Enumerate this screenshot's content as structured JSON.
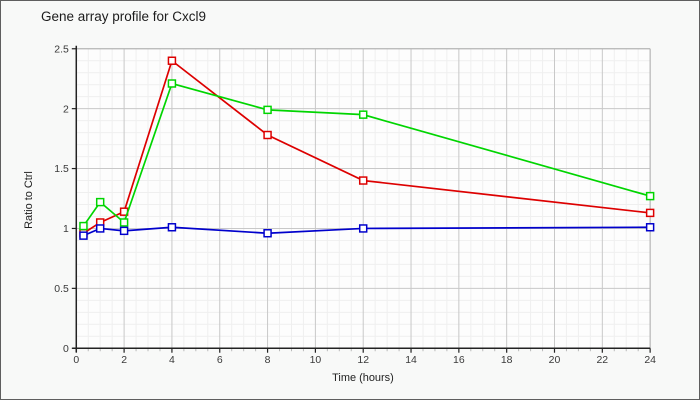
{
  "chart_data": {
    "type": "line",
    "title": "Gene array profile for Cxcl9",
    "xlabel": "Time (hours)",
    "ylabel": "Ratio to Ctrl",
    "xlim": [
      0,
      24
    ],
    "ylim": [
      0,
      2.5
    ],
    "x_ticks": [
      0,
      2,
      4,
      6,
      8,
      10,
      12,
      14,
      16,
      18,
      20,
      22,
      24
    ],
    "y_ticks": [
      0,
      0.5,
      1,
      1.5,
      2,
      2.5
    ],
    "x_minor_step": 0.5,
    "y_minor_step": 0.1,
    "grid": true,
    "legend": "none",
    "marker": "open-square",
    "x": [
      0.3,
      1,
      2,
      4,
      8,
      12,
      24
    ],
    "series": [
      {
        "name": "red",
        "color": "#dd0000",
        "values": [
          0.96,
          1.05,
          1.14,
          2.4,
          1.78,
          1.4,
          1.13
        ]
      },
      {
        "name": "green",
        "color": "#00d500",
        "values": [
          1.02,
          1.22,
          1.05,
          2.21,
          1.99,
          1.95,
          1.27
        ]
      },
      {
        "name": "blue",
        "color": "#0000cc",
        "values": [
          0.94,
          1.0,
          0.98,
          1.01,
          0.96,
          1.0,
          1.01
        ]
      }
    ],
    "colors": {
      "panel_bg": "#f8f9f8",
      "plot_bg": "#fdfdfd",
      "grid_minor": "#efefef",
      "grid_major": "#c8c8c8",
      "plot_border": "#b4b4b4",
      "axis": "#222222",
      "tick_minor": "#b9b9b9",
      "tick_text": "#3a3a3a",
      "title_text": "#1c1c1c"
    }
  }
}
